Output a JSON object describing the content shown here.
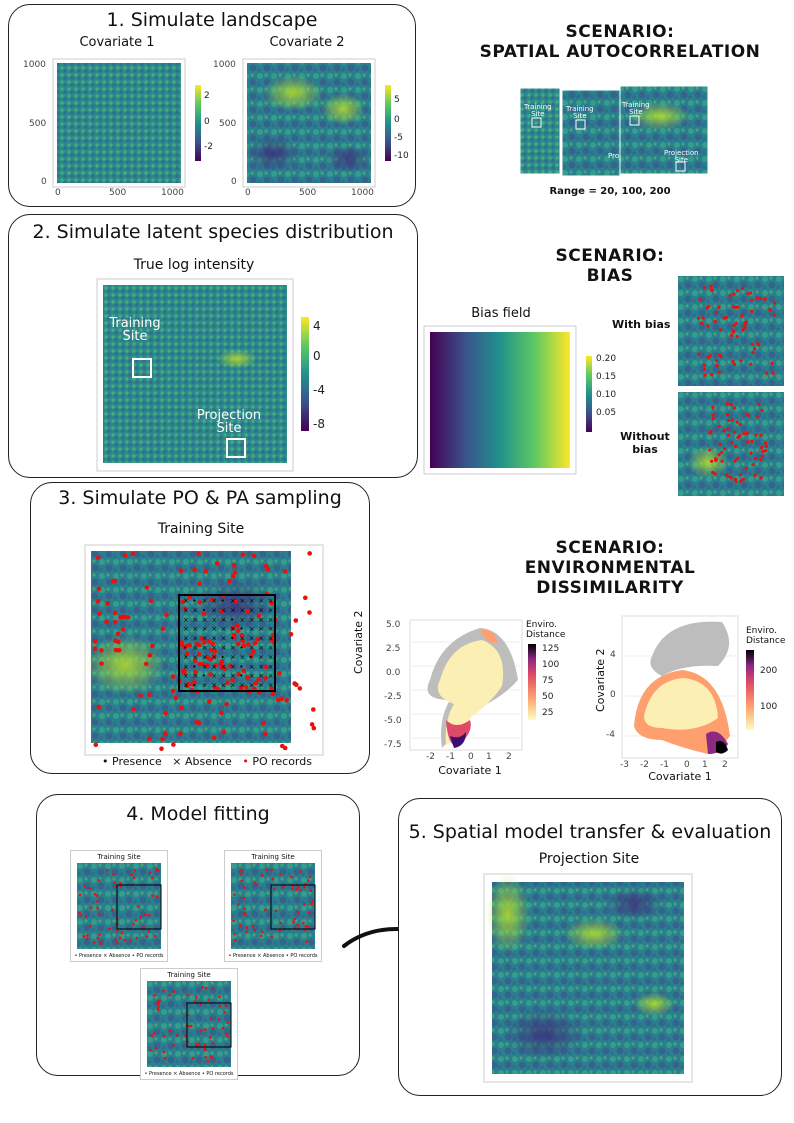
{
  "colors": {
    "viridis_dark": "#440154",
    "viridis_mid": "#21918c",
    "viridis_light": "#fde725",
    "red": "#e8110c",
    "grey": "#bdbdbd"
  },
  "panel1": {
    "title": "1. Simulate landscape",
    "cov1": {
      "title": "Covariate 1",
      "y_ticks": [
        "1000",
        "500",
        "0"
      ],
      "x_ticks": [
        "0",
        "500",
        "1000"
      ],
      "cbar_ticks": [
        "2",
        "0",
        "-2"
      ]
    },
    "cov2": {
      "title": "Covariate 2",
      "y_ticks": [
        "1000",
        "500",
        "0"
      ],
      "x_ticks": [
        "0",
        "500",
        "1000"
      ],
      "cbar_ticks": [
        "5",
        "0",
        "-5",
        "-10"
      ]
    }
  },
  "scenario_autocorr": {
    "line1": "SCENARIO:",
    "line2": "SPATIAL AUTOCORRELATION",
    "training_label": "Training\nSite",
    "projection_label": "Projection\nSite",
    "proj_short": "Proj",
    "range_text": "Range = 20, 100, 200"
  },
  "panel2": {
    "title": "2. Simulate latent species distribution",
    "map_title": "True log intensity",
    "training_label": "Training\nSite",
    "projection_label": "Projection\nSite",
    "cbar_ticks": [
      "4",
      "0",
      "-4",
      "-8"
    ]
  },
  "scenario_bias": {
    "line1": "SCENARIO:",
    "line2": "BIAS",
    "bias_title": "Bias field",
    "cbar_ticks": [
      "0.20",
      "0.15",
      "0.10",
      "0.05"
    ],
    "with_bias": "With bias",
    "without_bias_1": "Without",
    "without_bias_2": "bias"
  },
  "panel3": {
    "title": "3. Simulate PO & PA sampling",
    "map_title": "Training Site",
    "legend": {
      "presence": "Presence",
      "absence": "Absence",
      "po": "PO records"
    }
  },
  "scenario_env": {
    "line1": "SCENARIO:",
    "line2": "ENVIRONMENTAL",
    "line3": "DISSIMILARITY",
    "plot1": {
      "ylabel": "Covariate 2",
      "xlabel": "Covariate 1",
      "y_ticks": [
        "5.0",
        "2.5",
        "0.0",
        "-2.5",
        "-5.0",
        "-7.5"
      ],
      "x_ticks": [
        "-2",
        "-1",
        "0",
        "1",
        "2"
      ],
      "legend_title": "Enviro.\nDistance",
      "legend_ticks": [
        "125",
        "100",
        "75",
        "50",
        "25"
      ]
    },
    "plot2": {
      "ylabel": "Covariate 2",
      "xlabel": "Covariate 1",
      "y_ticks": [
        "4",
        "0",
        "-4"
      ],
      "x_ticks": [
        "-3",
        "-2",
        "-1",
        "0",
        "1",
        "2"
      ],
      "legend_title": "Enviro.\nDistance",
      "legend_ticks": [
        "200",
        "100"
      ]
    }
  },
  "panel4": {
    "title": "4. Model fitting",
    "mini_title": "Training Site",
    "mini_legend": "•  Presence   ×  Absence   •  PO records"
  },
  "panel5": {
    "title": "5. Spatial model transfer & evaluation",
    "map_title": "Projection Site"
  }
}
